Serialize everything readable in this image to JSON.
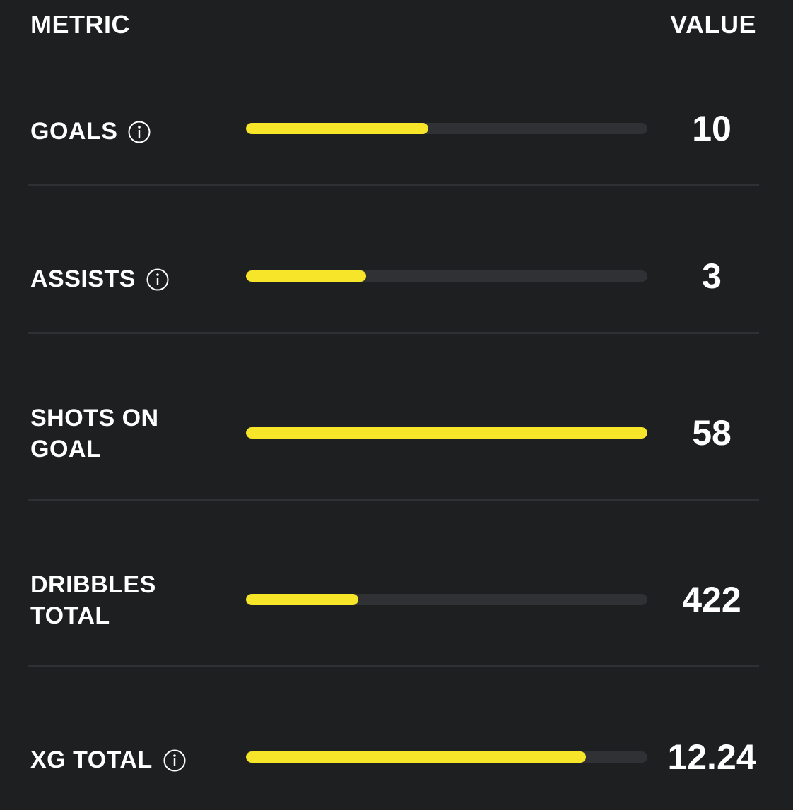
{
  "header": {
    "metric_label": "METRIC",
    "value_label": "VALUE"
  },
  "colors": {
    "background": "#1e1f21",
    "bar_fill": "#f7e52a",
    "bar_track": "#2f3134",
    "divider": "#2e3033",
    "text": "#ffffff"
  },
  "rows": [
    {
      "label": "GOALS",
      "has_info_icon": true,
      "info_icon": "info-icon",
      "value": "10",
      "bar_fraction": 0.455
    },
    {
      "label": "ASSISTS",
      "has_info_icon": true,
      "info_icon": "info-icon",
      "value": "3",
      "bar_fraction": 0.3
    },
    {
      "label": "SHOTS ON GOAL",
      "has_info_icon": false,
      "value": "58",
      "bar_fraction": 1.0
    },
    {
      "label": "DRIBBLES TOTAL",
      "has_info_icon": false,
      "value": "422",
      "bar_fraction": 0.28
    },
    {
      "label": "XG TOTAL",
      "has_info_icon": true,
      "info_icon": "info-icon",
      "value": "12.24",
      "bar_fraction": 0.847
    }
  ]
}
